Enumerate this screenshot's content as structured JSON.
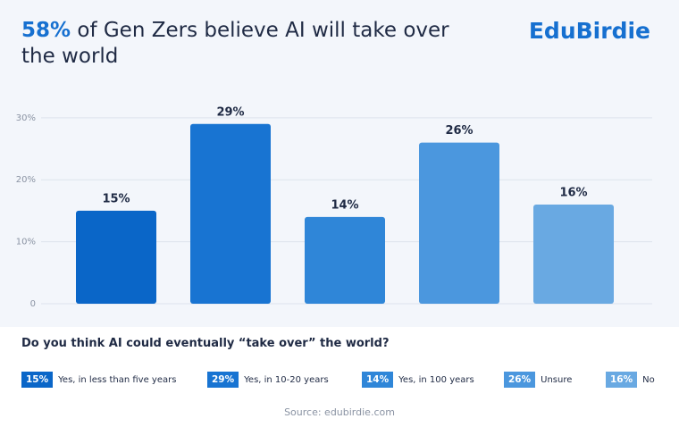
{
  "brand": "EduBirdie",
  "chart_data": {
    "type": "bar",
    "title_highlight": "58%",
    "title": "of Gen Zers believe AI will take over the world",
    "question": "Do you think AI could eventually “take over” the world?",
    "source": "Source: edubirdie.com",
    "categories": [
      "Yes, in less than five years",
      "Yes, in 10-20 years",
      "Yes, in 100 years",
      "Unsure",
      "No"
    ],
    "values": [
      15,
      29,
      14,
      26,
      16
    ],
    "value_labels": [
      "15%",
      "29%",
      "14%",
      "26%",
      "16%"
    ],
    "colors": [
      "#0a66c8",
      "#1874d2",
      "#2f86d8",
      "#4b97de",
      "#69a9e2"
    ],
    "ylim": [
      0,
      33
    ],
    "yticks": [
      0,
      {
        "value": 10,
        "label": "10%"
      },
      {
        "value": 20,
        "label": "20%"
      },
      {
        "value": 30,
        "label": "30%"
      }
    ],
    "grid": true
  }
}
